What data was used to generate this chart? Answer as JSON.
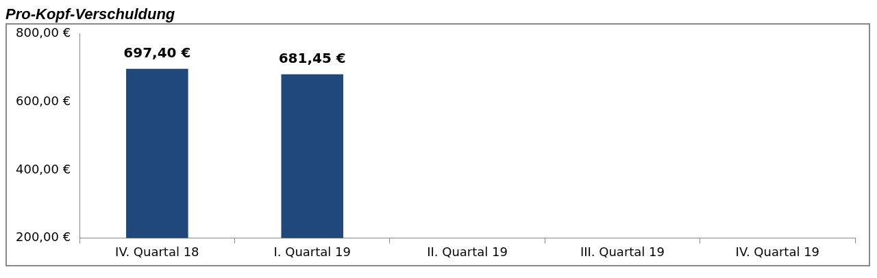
{
  "chart_data": {
    "type": "bar",
    "title": "Pro-Kopf-Verschuldung",
    "categories": [
      "IV. Quartal 18",
      "I. Quartal 19",
      "II. Quartal 19",
      "III. Quartal 19",
      "IV. Quartal 19"
    ],
    "values": [
      697.4,
      681.45,
      null,
      null,
      null
    ],
    "color": "#21487a",
    "value_labels": [
      "697,40 €",
      "681,45 €",
      null,
      null,
      null
    ],
    "ylim": [
      200,
      800
    ],
    "yticks": [
      {
        "value": 200,
        "label": "200,00 €"
      },
      {
        "value": 400,
        "label": "400,00 €"
      },
      {
        "value": 600,
        "label": "600,00 €"
      },
      {
        "value": 800,
        "label": "800,00 €"
      }
    ],
    "grid": false,
    "legend": false
  }
}
